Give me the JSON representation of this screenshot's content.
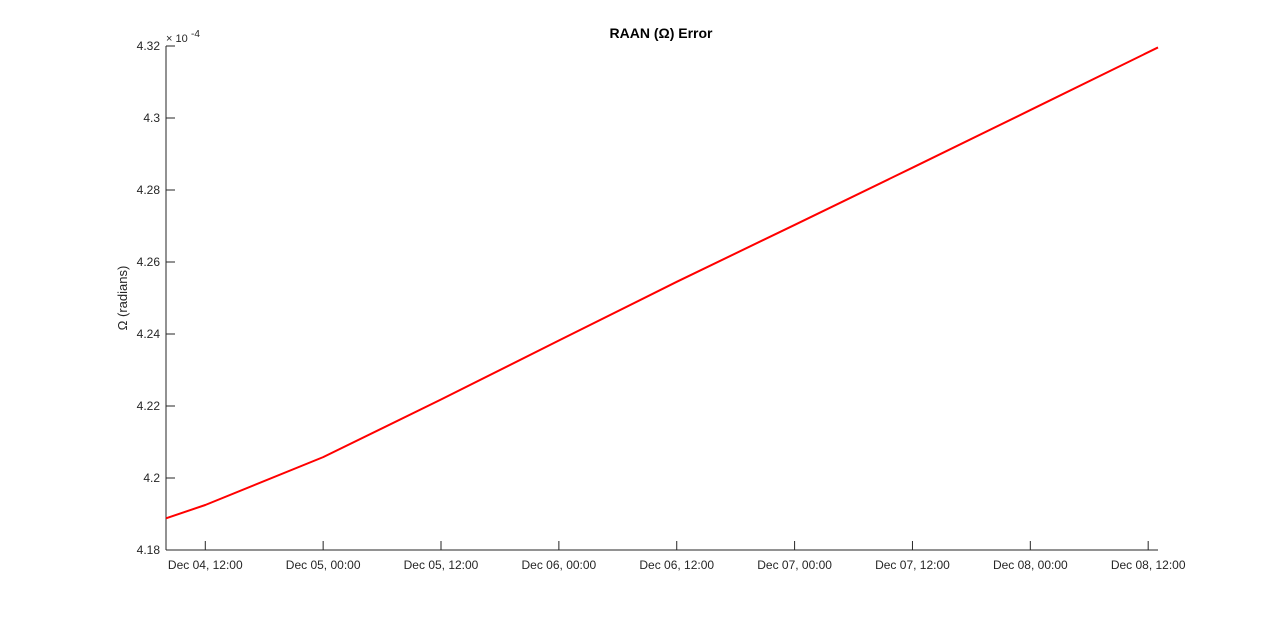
{
  "chart_data": {
    "type": "line",
    "title": "RAAN (Ω) Error",
    "ylabel": "Ω (radians)",
    "xlabel": "",
    "y_exponent_label": "× 10",
    "y_exponent_power": "-4",
    "y_scale_factor": 0.0001,
    "ylim": [
      4.18,
      4.32
    ],
    "yticks": [
      4.18,
      4.2,
      4.22,
      4.24,
      4.26,
      4.28,
      4.3,
      4.32
    ],
    "ytick_labels": [
      "4.18",
      "4.2",
      "4.22",
      "4.24",
      "4.26",
      "4.28",
      "4.3",
      "4.32"
    ],
    "xlim": [
      "2019-12-04 08:00",
      "2019-12-08 13:00"
    ],
    "xticks": [
      "2019-12-04 12:00",
      "2019-12-05 00:00",
      "2019-12-05 12:00",
      "2019-12-06 00:00",
      "2019-12-06 12:00",
      "2019-12-07 00:00",
      "2019-12-07 12:00",
      "2019-12-08 00:00",
      "2019-12-08 12:00"
    ],
    "xtick_labels": [
      "Dec 04, 12:00",
      "Dec 05, 00:00",
      "Dec 05, 12:00",
      "Dec 06, 00:00",
      "Dec 06, 12:00",
      "Dec 07, 00:00",
      "Dec 07, 12:00",
      "Dec 08, 00:00",
      "Dec 08, 12:00"
    ],
    "series": [
      {
        "color": "#ff0000",
        "x": [
          "2019-12-04 08:00",
          "2019-12-04 12:00",
          "2019-12-05 00:00",
          "2019-12-05 12:00",
          "2019-12-06 00:00",
          "2019-12-06 12:00",
          "2019-12-07 00:00",
          "2019-12-07 12:00",
          "2019-12-08 00:00",
          "2019-12-08 13:00"
        ],
        "values": [
          4.1888,
          4.1925,
          4.2058,
          4.2218,
          4.2382,
          4.2545,
          4.2703,
          4.2862,
          4.3022,
          4.3196
        ]
      }
    ],
    "grid": false,
    "legend": "none"
  }
}
